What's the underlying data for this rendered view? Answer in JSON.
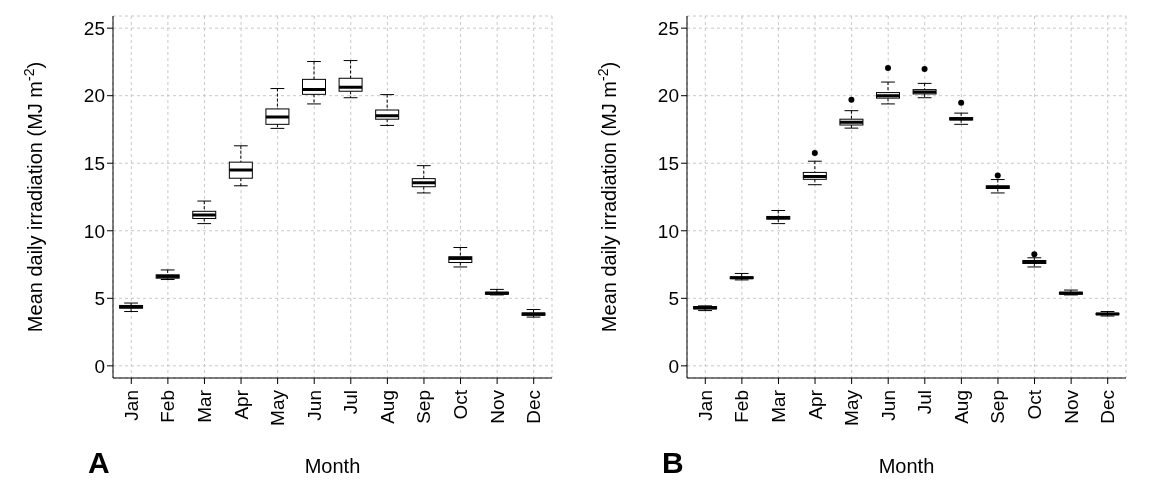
{
  "chart_data": [
    {
      "type": "box",
      "xlabel": "Month",
      "ylabel": "Mean daily irradiation (MJ m$^{-2}$)",
      "annotations": [
        "A"
      ],
      "categories": [
        "Jan",
        "Feb",
        "Mar",
        "Apr",
        "May",
        "Jun",
        "Jul",
        "Aug",
        "Sep",
        "Oct",
        "Nov",
        "Dec"
      ],
      "ylim": [
        -0.9,
        25.9
      ],
      "yticks": [
        0,
        5,
        10,
        15,
        20,
        25
      ],
      "grid": true,
      "boxes": [
        {
          "low": 4.02,
          "q1": 4.27,
          "median": 4.37,
          "q3": 4.47,
          "high": 4.65
        },
        {
          "low": 6.39,
          "q1": 6.49,
          "median": 6.62,
          "q3": 6.74,
          "high": 7.1
        },
        {
          "low": 10.53,
          "q1": 10.91,
          "median": 11.16,
          "q3": 11.44,
          "high": 12.2
        },
        {
          "low": 13.33,
          "q1": 13.89,
          "median": 14.49,
          "q3": 15.08,
          "high": 16.29
        },
        {
          "low": 17.58,
          "q1": 17.88,
          "median": 18.43,
          "q3": 19.02,
          "high": 20.53
        },
        {
          "low": 19.39,
          "q1": 20.1,
          "median": 20.45,
          "q3": 21.21,
          "high": 22.53
        },
        {
          "low": 19.85,
          "q1": 20.33,
          "median": 20.63,
          "q3": 21.29,
          "high": 22.6
        },
        {
          "low": 17.8,
          "q1": 18.26,
          "median": 18.51,
          "q3": 18.94,
          "high": 20.08
        },
        {
          "low": 12.8,
          "q1": 13.26,
          "median": 13.56,
          "q3": 13.86,
          "high": 14.82
        },
        {
          "low": 7.32,
          "q1": 7.65,
          "median": 7.95,
          "q3": 8.08,
          "high": 8.76
        },
        {
          "low": 5.25,
          "q1": 5.3,
          "median": 5.38,
          "q3": 5.45,
          "high": 5.66
        },
        {
          "low": 3.61,
          "q1": 3.74,
          "median": 3.84,
          "q3": 3.91,
          "high": 4.17
        }
      ]
    },
    {
      "type": "box",
      "xlabel": "Month",
      "ylabel": "Mean daily irradiation (MJ m$^{-2}$)",
      "annotations": [
        "B"
      ],
      "categories": [
        "Jan",
        "Feb",
        "Mar",
        "Apr",
        "May",
        "Jun",
        "Jul",
        "Aug",
        "Sep",
        "Oct",
        "Nov",
        "Dec"
      ],
      "ylim": [
        -0.9,
        25.9
      ],
      "yticks": [
        0,
        5,
        10,
        15,
        20,
        25
      ],
      "grid": true,
      "boxes": [
        {
          "low": 4.09,
          "q1": 4.22,
          "median": 4.29,
          "q3": 4.39,
          "high": 4.44
        },
        {
          "low": 6.36,
          "q1": 6.46,
          "median": 6.52,
          "q3": 6.59,
          "high": 6.84
        },
        {
          "low": 10.53,
          "q1": 10.86,
          "median": 10.96,
          "q3": 11.06,
          "high": 11.5
        },
        {
          "low": 13.41,
          "q1": 13.81,
          "median": 14.02,
          "q3": 14.32,
          "high": 15.15,
          "outliers": [
            15.76
          ]
        },
        {
          "low": 17.6,
          "q1": 17.83,
          "median": 18.03,
          "q3": 18.26,
          "high": 18.89,
          "outliers": [
            19.7
          ]
        },
        {
          "low": 19.39,
          "q1": 19.82,
          "median": 20.0,
          "q3": 20.23,
          "high": 21.01,
          "outliers": [
            22.05
          ]
        },
        {
          "low": 19.85,
          "q1": 20.13,
          "median": 20.28,
          "q3": 20.45,
          "high": 20.91,
          "outliers": [
            21.97
          ]
        },
        {
          "low": 17.88,
          "q1": 18.21,
          "median": 18.28,
          "q3": 18.38,
          "high": 18.71,
          "outliers": [
            19.47
          ]
        },
        {
          "low": 12.8,
          "q1": 13.13,
          "median": 13.23,
          "q3": 13.33,
          "high": 13.79,
          "outliers": [
            14.09
          ]
        },
        {
          "low": 7.32,
          "q1": 7.58,
          "median": 7.68,
          "q3": 7.8,
          "high": 8.0,
          "outliers": [
            8.26
          ]
        },
        {
          "low": 5.25,
          "q1": 5.3,
          "median": 5.38,
          "q3": 5.45,
          "high": 5.61
        },
        {
          "low": 3.69,
          "q1": 3.79,
          "median": 3.84,
          "q3": 3.89,
          "high": 4.02
        }
      ]
    }
  ]
}
